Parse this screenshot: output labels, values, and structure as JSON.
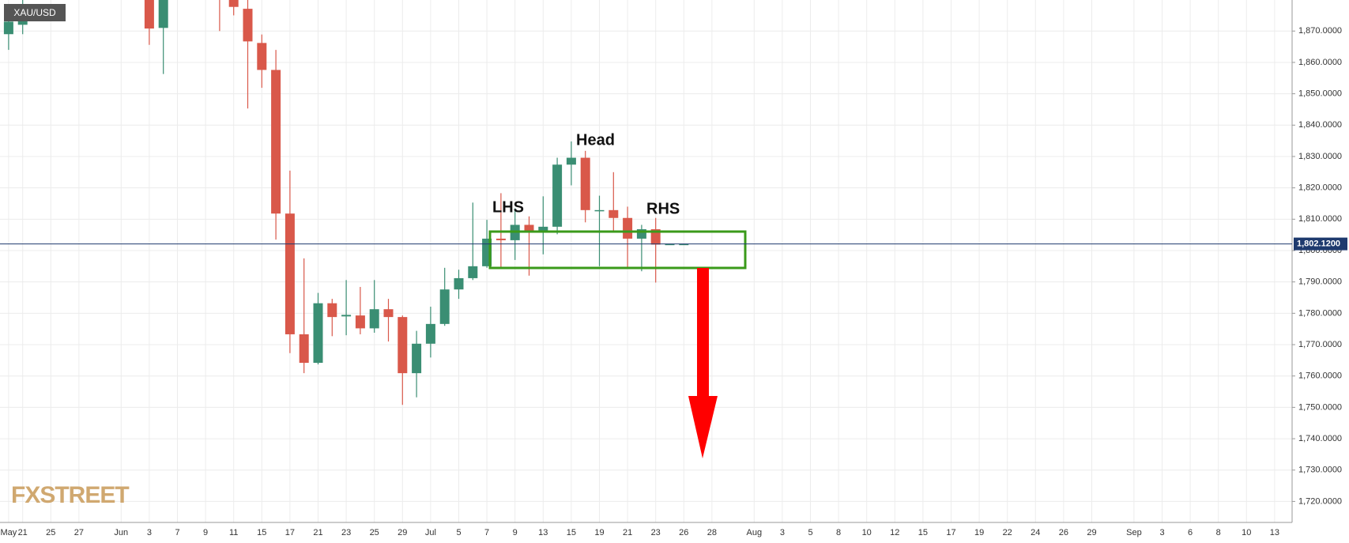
{
  "chart_data": {
    "type": "candlestick",
    "symbol": "XAU/USD",
    "watermark": "FXSTREET",
    "annotations": [
      "LHS",
      "Head",
      "RHS"
    ],
    "last_price": {
      "value": 1802.12,
      "label": "1,802.1200"
    },
    "up_color": "#3a8e73",
    "down_color": "#d9584a",
    "grid": true,
    "categories": [
      "May",
      "21",
      null,
      "25",
      null,
      "27",
      null,
      null,
      "Jun",
      null,
      "3",
      null,
      "7",
      null,
      "9",
      null,
      "11",
      null,
      "15",
      null,
      "17",
      null,
      "21",
      null,
      "23",
      null,
      "25",
      null,
      "29",
      null,
      "Jul",
      null,
      "5",
      null,
      "7",
      null,
      "9",
      null,
      "13",
      null,
      "15",
      null,
      "19",
      null,
      "21",
      null,
      "23",
      null,
      "26",
      null,
      "28",
      null,
      null,
      "Aug",
      null,
      "3",
      null,
      "5",
      null,
      "8",
      null,
      "10",
      null,
      "12",
      null,
      "15",
      null,
      "17",
      null,
      "19",
      null,
      "22",
      null,
      "24",
      null,
      "26",
      null,
      "29",
      null,
      null,
      "Sep",
      null,
      "3",
      null,
      "6",
      null,
      "8",
      null,
      "10",
      null,
      "13",
      null
    ],
    "open": [
      1869,
      1872,
      null,
      null,
      null,
      null,
      null,
      null,
      null,
      null,
      1882,
      1871,
      null,
      null,
      null,
      1884,
      1881,
      1877.1,
      1866.2,
      1857.6,
      1811.8,
      1773.3,
      1764.2,
      1783.2,
      1779,
      1779.3,
      1775.2,
      1781.3,
      1778.8,
      1760.9,
      1770.3,
      1776.6,
      1787.6,
      1791.2,
      1795,
      1803.8,
      1803.3,
      1808.2,
      1805.7,
      1807.6,
      1827.4,
      1829.6,
      1812.9,
      1812.9,
      1810.4,
      1803.8,
      1806.8,
      1802.1,
      1802.1,
      null,
      null,
      null,
      null,
      null,
      null,
      null,
      null,
      null,
      null,
      null,
      null,
      null,
      null,
      null,
      null,
      null,
      null,
      null,
      null,
      null,
      null,
      null,
      null,
      null,
      null,
      null,
      null,
      null,
      null,
      null,
      null,
      null,
      null,
      null,
      null,
      null,
      null,
      null,
      null,
      null,
      null,
      null
    ],
    "high": [
      1876,
      1882,
      null,
      null,
      null,
      null,
      null,
      null,
      null,
      null,
      1886,
      1886,
      null,
      null,
      null,
      1886,
      1883,
      1880,
      1868.9,
      1864,
      1825.5,
      1797.5,
      1786.5,
      1784.6,
      1790.6,
      1788.4,
      1790.6,
      1784.6,
      1779.3,
      1774.4,
      1782.1,
      1794.5,
      1793.9,
      1815.3,
      1809.8,
      1818.3,
      1813.5,
      1810.9,
      1817.3,
      1829.6,
      1834.8,
      1831.8,
      1817.5,
      1825,
      1814,
      1808.2,
      1810.4,
      1802.1,
      1802.1,
      null,
      null,
      null,
      null,
      null,
      null,
      null,
      null,
      null,
      null,
      null,
      null,
      null,
      null,
      null,
      null,
      null,
      null,
      null,
      null,
      null,
      null,
      null,
      null,
      null,
      null,
      null,
      null,
      null,
      null,
      null,
      null,
      null,
      null,
      null,
      null,
      null,
      null,
      null,
      null,
      null,
      null,
      null
    ],
    "low": [
      1864,
      1869,
      null,
      null,
      null,
      null,
      null,
      null,
      null,
      null,
      1865.6,
      1856.3,
      null,
      null,
      null,
      1870,
      1875,
      1845.3,
      1851.9,
      1803.5,
      1767.3,
      1760.9,
      1763.7,
      1772.7,
      1773,
      1773.3,
      1773.8,
      1771,
      1750.8,
      1753.2,
      1765.9,
      1776,
      1784.6,
      1790.6,
      1794.5,
      1794.8,
      1797,
      1792,
      1798.8,
      1805.2,
      1820.8,
      1809,
      1795,
      1806.3,
      1794.5,
      1793.4,
      1789.8,
      1802.1,
      1802.1,
      null,
      null,
      null,
      null,
      null,
      null,
      null,
      null,
      null,
      null,
      null,
      null,
      null,
      null,
      null,
      null,
      null,
      null,
      null,
      null,
      null,
      null,
      null,
      null,
      null,
      null,
      null,
      null,
      null,
      null,
      null,
      null,
      null,
      null,
      null,
      null,
      null,
      null,
      null,
      null,
      null,
      null,
      null
    ],
    "close": [
      1873,
      1878,
      null,
      null,
      null,
      null,
      null,
      null,
      null,
      null,
      1870.8,
      1885,
      null,
      null,
      null,
      1880,
      1877.7,
      1866.7,
      1857.6,
      1811.8,
      1773.3,
      1764.2,
      1783.2,
      1778.8,
      1779.5,
      1775.2,
      1781.3,
      1778.8,
      1760.9,
      1770.3,
      1776.6,
      1787.6,
      1791.2,
      1795,
      1803.8,
      1803.3,
      1808.2,
      1805.7,
      1807.6,
      1827.4,
      1829.6,
      1812.9,
      1812.9,
      1810.4,
      1803.8,
      1806.8,
      1801.9,
      1802.1,
      1802.1,
      null,
      null,
      null,
      null,
      null,
      null,
      null,
      null,
      null,
      null,
      null,
      null,
      null,
      null,
      null,
      null,
      null,
      null,
      null,
      null,
      null,
      null,
      null,
      null,
      null,
      null,
      null,
      null,
      null,
      null,
      null,
      null,
      null,
      null,
      null,
      null,
      null,
      null,
      null,
      null,
      null,
      null,
      null
    ],
    "ylim": [
      1713.3,
      1879.9
    ],
    "yticks": [
      {
        "value": 1720,
        "label": "1,720.0000"
      },
      {
        "value": 1730,
        "label": "1,730.0000"
      },
      {
        "value": 1740,
        "label": "1,740.0000"
      },
      {
        "value": 1750,
        "label": "1,750.0000"
      },
      {
        "value": 1760,
        "label": "1,760.0000"
      },
      {
        "value": 1770,
        "label": "1,770.0000"
      },
      {
        "value": 1780,
        "label": "1,780.0000"
      },
      {
        "value": 1790,
        "label": "1,790.0000"
      },
      {
        "value": 1800,
        "label": "1,800.0000"
      },
      {
        "value": 1810,
        "label": "1,810.0000"
      },
      {
        "value": 1820,
        "label": "1,820.0000"
      },
      {
        "value": 1830,
        "label": "1,830.0000"
      },
      {
        "value": 1840,
        "label": "1,840.0000"
      },
      {
        "value": 1850,
        "label": "1,850.0000"
      },
      {
        "value": 1860,
        "label": "1,860.0000"
      },
      {
        "value": 1870,
        "label": "1,870.0000"
      }
    ]
  }
}
